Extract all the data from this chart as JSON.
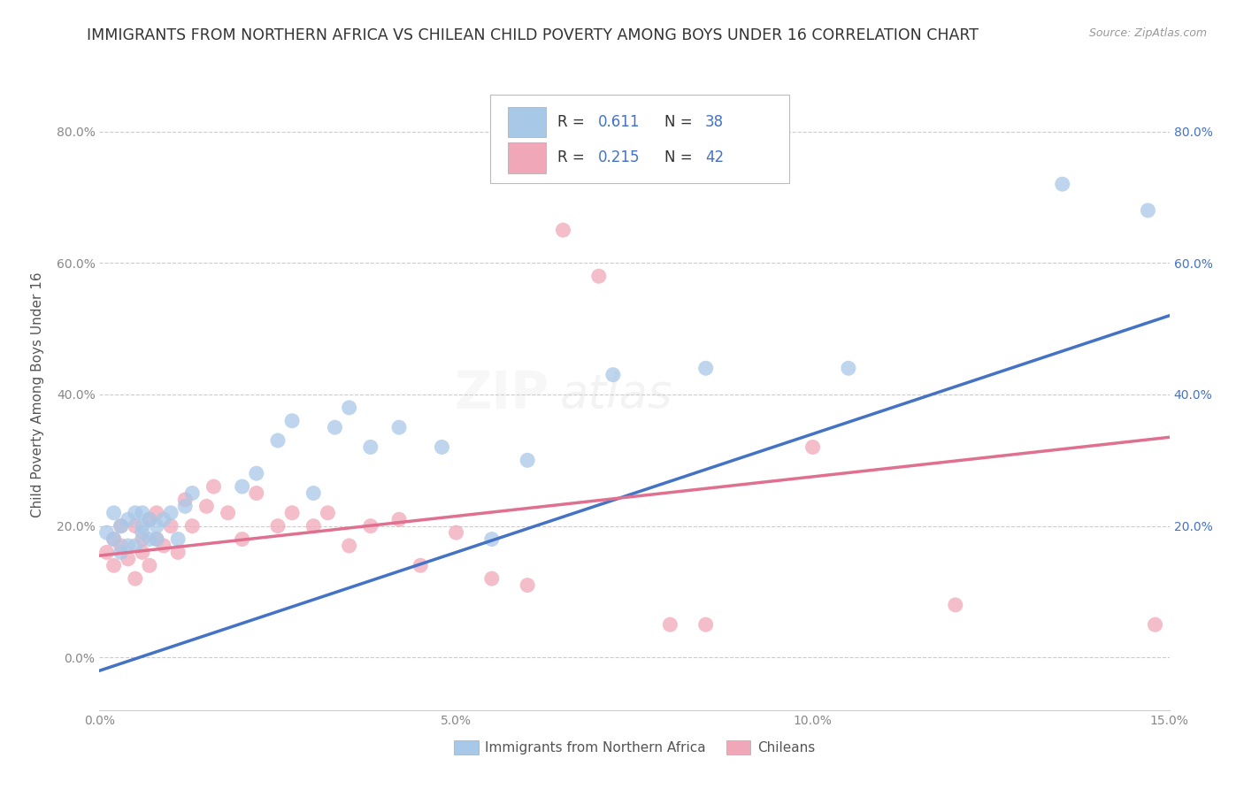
{
  "title": "IMMIGRANTS FROM NORTHERN AFRICA VS CHILEAN CHILD POVERTY AMONG BOYS UNDER 16 CORRELATION CHART",
  "source": "Source: ZipAtlas.com",
  "ylabel": "Child Poverty Among Boys Under 16",
  "xlim": [
    0.0,
    0.15
  ],
  "ylim": [
    -0.08,
    0.88
  ],
  "yticks": [
    0.0,
    0.2,
    0.4,
    0.6,
    0.8
  ],
  "ytick_labels_left": [
    "0.0%",
    "20.0%",
    "40.0%",
    "60.0%",
    "80.0%"
  ],
  "ytick_labels_right": [
    "",
    "20.0%",
    "40.0%",
    "60.0%",
    "80.0%"
  ],
  "xticks": [
    0.0,
    0.05,
    0.1,
    0.15
  ],
  "xtick_labels": [
    "0.0%",
    "5.0%",
    "10.0%",
    "15.0%"
  ],
  "legend_label1": "Immigrants from Northern Africa",
  "legend_label2": "Chileans",
  "color_blue": "#A8C8E8",
  "color_pink": "#F0A8B8",
  "color_blue_line": "#4472C4",
  "color_pink_line": "#E07090",
  "color_legend_text": "#4472C4",
  "watermark_zip": "ZIP",
  "watermark_atlas": "atlas",
  "blue_scatter_x": [
    0.001,
    0.002,
    0.002,
    0.003,
    0.003,
    0.004,
    0.004,
    0.005,
    0.005,
    0.006,
    0.006,
    0.006,
    0.007,
    0.007,
    0.008,
    0.008,
    0.009,
    0.01,
    0.011,
    0.012,
    0.013,
    0.02,
    0.022,
    0.025,
    0.027,
    0.03,
    0.033,
    0.035,
    0.038,
    0.042,
    0.048,
    0.055,
    0.06,
    0.072,
    0.085,
    0.105,
    0.135,
    0.147
  ],
  "blue_scatter_y": [
    0.19,
    0.22,
    0.18,
    0.2,
    0.16,
    0.21,
    0.17,
    0.22,
    0.17,
    0.2,
    0.22,
    0.19,
    0.18,
    0.21,
    0.2,
    0.18,
    0.21,
    0.22,
    0.18,
    0.23,
    0.25,
    0.26,
    0.28,
    0.33,
    0.36,
    0.25,
    0.35,
    0.38,
    0.32,
    0.35,
    0.32,
    0.18,
    0.3,
    0.43,
    0.44,
    0.44,
    0.72,
    0.68
  ],
  "pink_scatter_x": [
    0.001,
    0.002,
    0.002,
    0.003,
    0.003,
    0.004,
    0.005,
    0.005,
    0.006,
    0.006,
    0.007,
    0.007,
    0.008,
    0.008,
    0.009,
    0.01,
    0.011,
    0.012,
    0.013,
    0.015,
    0.016,
    0.018,
    0.02,
    0.022,
    0.025,
    0.027,
    0.03,
    0.032,
    0.035,
    0.038,
    0.042,
    0.045,
    0.05,
    0.055,
    0.06,
    0.065,
    0.07,
    0.08,
    0.085,
    0.1,
    0.12,
    0.148
  ],
  "pink_scatter_y": [
    0.16,
    0.14,
    0.18,
    0.17,
    0.2,
    0.15,
    0.12,
    0.2,
    0.18,
    0.16,
    0.21,
    0.14,
    0.22,
    0.18,
    0.17,
    0.2,
    0.16,
    0.24,
    0.2,
    0.23,
    0.26,
    0.22,
    0.18,
    0.25,
    0.2,
    0.22,
    0.2,
    0.22,
    0.17,
    0.2,
    0.21,
    0.14,
    0.19,
    0.12,
    0.11,
    0.65,
    0.58,
    0.05,
    0.05,
    0.32,
    0.08,
    0.05
  ],
  "blue_line_x": [
    0.0,
    0.15
  ],
  "blue_line_y": [
    -0.02,
    0.52
  ],
  "pink_line_x": [
    0.0,
    0.15
  ],
  "pink_line_y": [
    0.155,
    0.335
  ],
  "background_color": "#FFFFFF",
  "grid_color": "#CCCCCC",
  "title_fontsize": 12.5,
  "axis_label_fontsize": 11,
  "tick_fontsize": 10,
  "watermark_fontsize_zip": 42,
  "watermark_fontsize_atlas": 38,
  "watermark_alpha": 0.15
}
